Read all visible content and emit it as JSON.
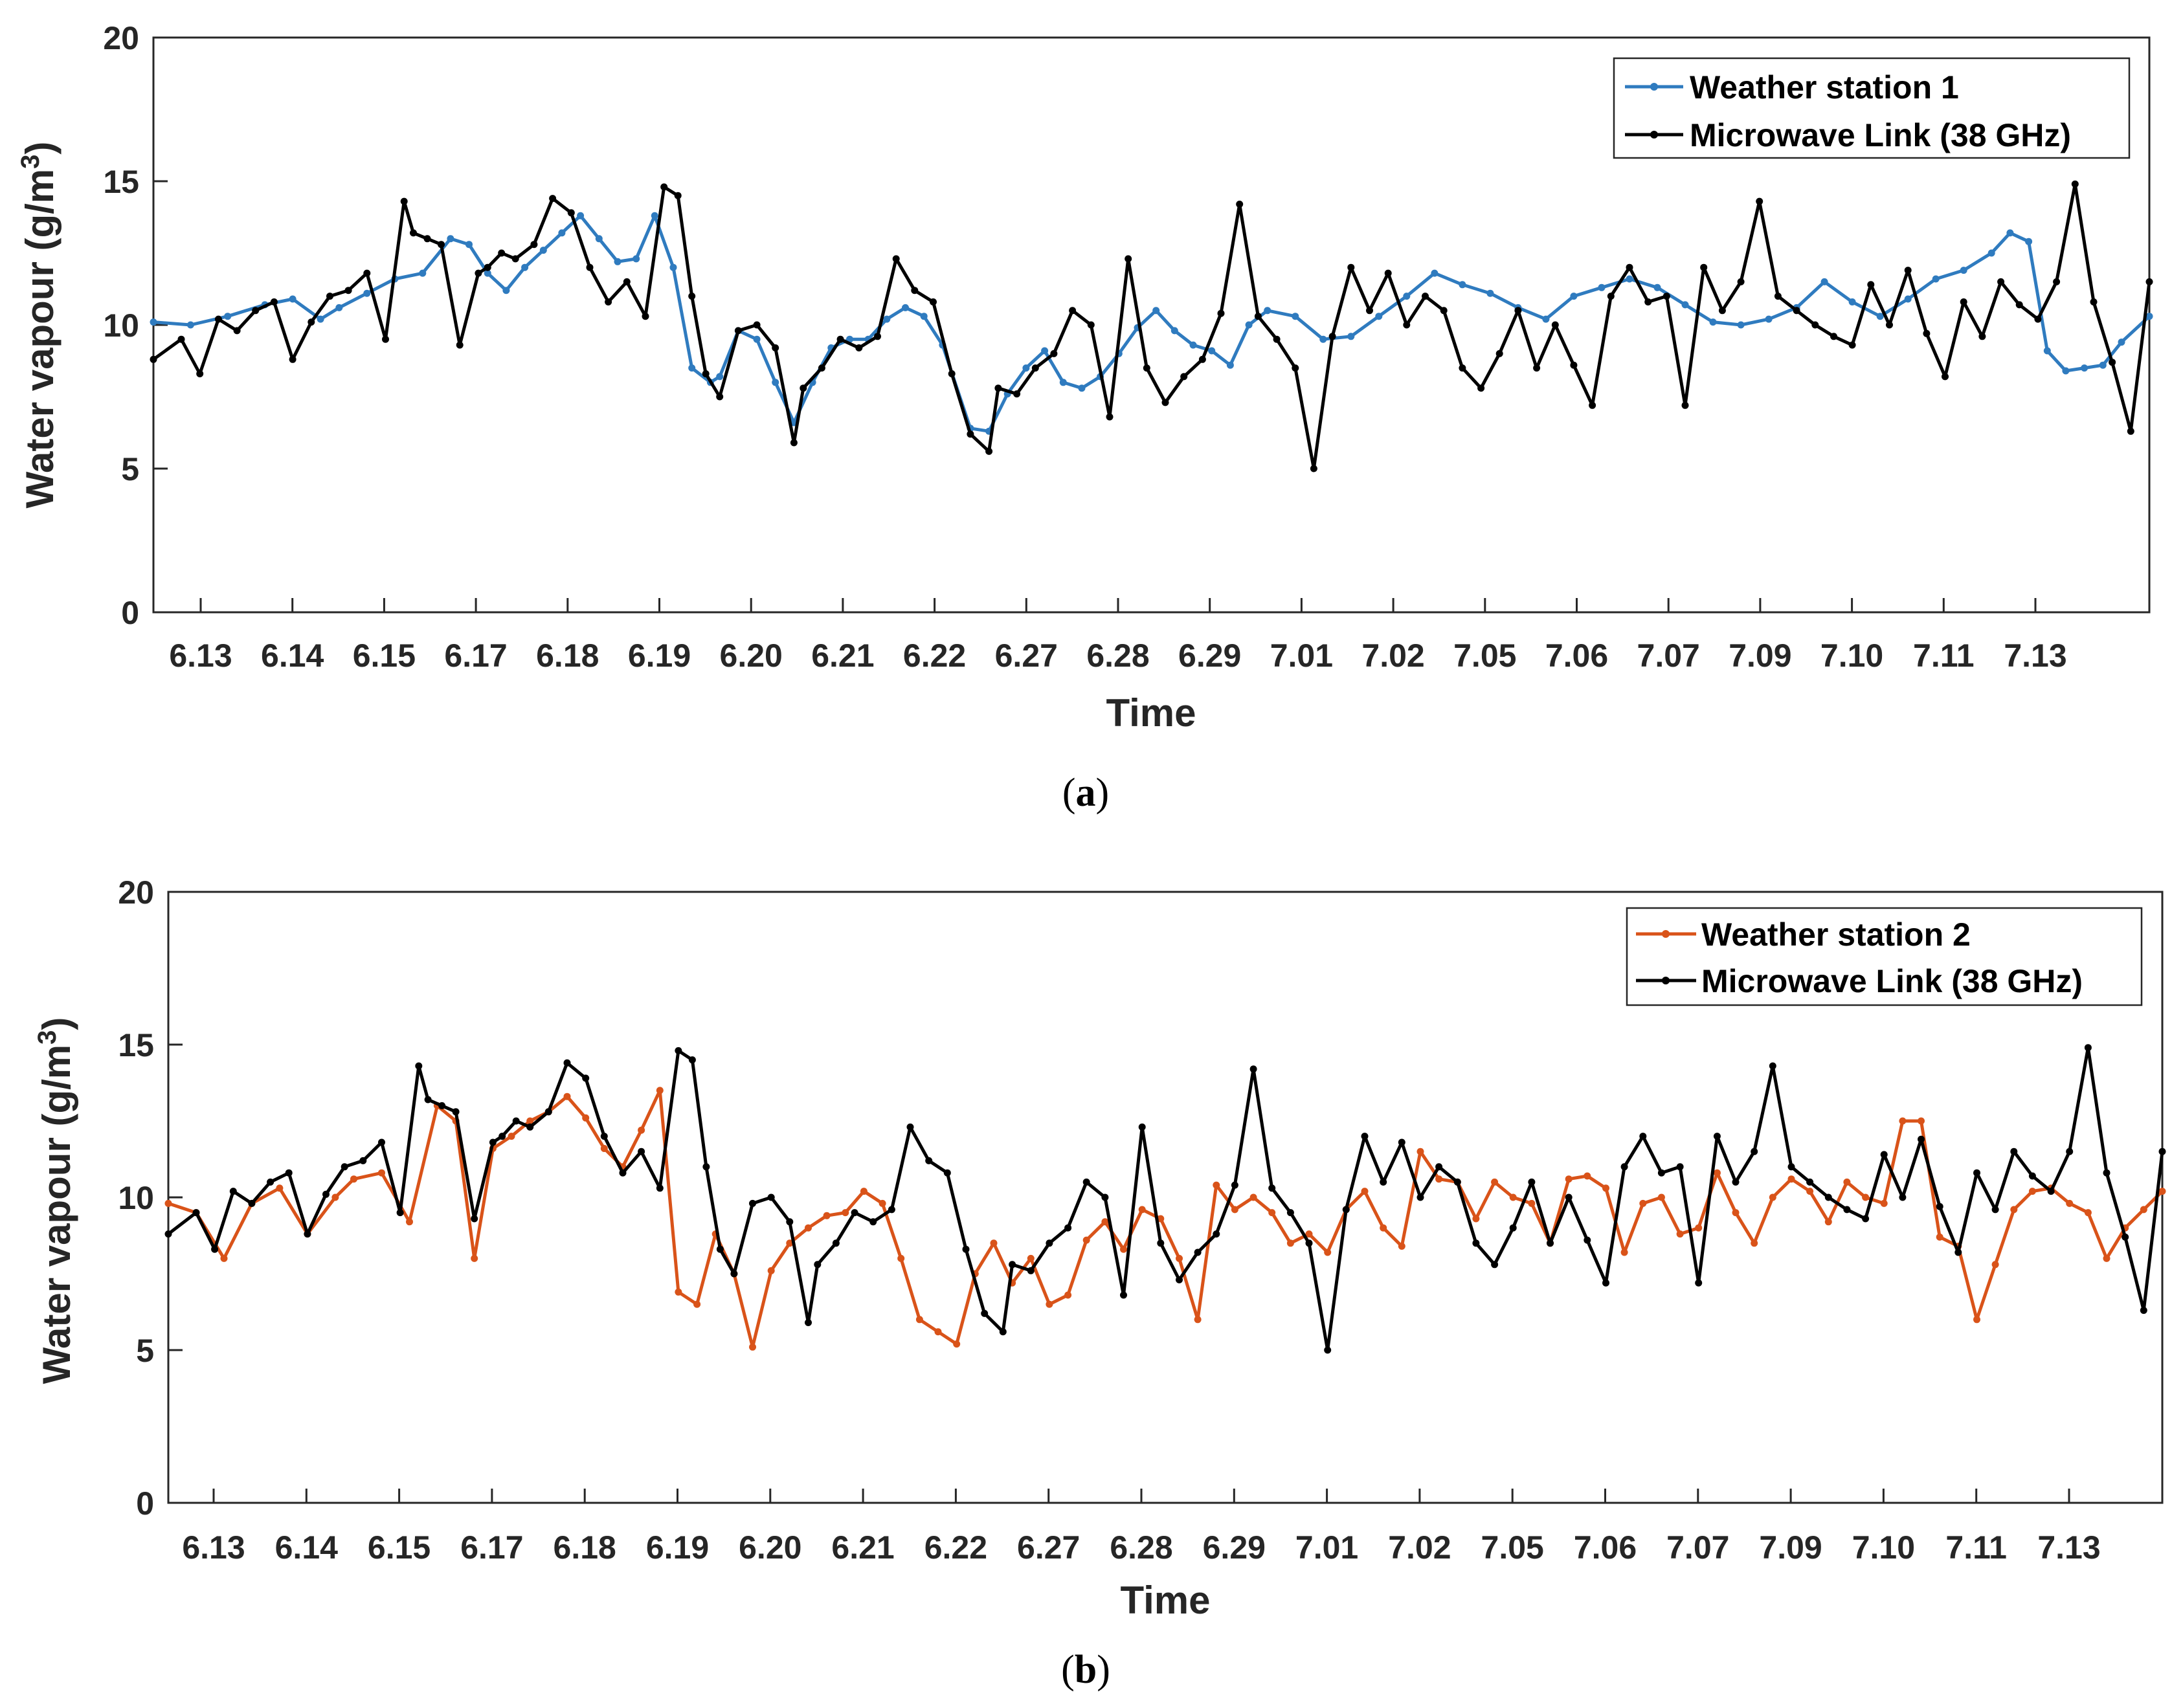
{
  "chart_data": [
    {
      "type": "line",
      "panel_label": "a",
      "xlabel": "Time",
      "ylabel": "Water vapour (g/m",
      "ylabel_sup": "3",
      "ylabel_close": ")",
      "ylim": [
        0,
        20
      ],
      "yticks": [
        "0",
        "5",
        "10",
        "15",
        "20"
      ],
      "xlim": [
        0,
        21.5
      ],
      "categories": [
        "6.13",
        "6.14",
        "6.15",
        "6.17",
        "6.18",
        "6.19",
        "6.20",
        "6.21",
        "6.22",
        "6.27",
        "6.28",
        "6.29",
        "7.01",
        "7.02",
        "7.05",
        "7.06",
        "7.07",
        "7.09",
        "7.10",
        "7.11",
        "7.13"
      ],
      "legend_position": "top-right",
      "series": [
        {
          "name": "Weather station 1",
          "color": "#2f7bbf",
          "x": [
            0.0,
            0.4,
            0.8,
            1.2,
            1.5,
            1.8,
            2.0,
            2.3,
            2.6,
            2.9,
            3.2,
            3.4,
            3.6,
            3.8,
            4.0,
            4.2,
            4.4,
            4.6,
            4.8,
            5.0,
            5.2,
            5.4,
            5.6,
            5.8,
            6.0,
            6.1,
            6.3,
            6.5,
            6.7,
            6.9,
            7.1,
            7.3,
            7.5,
            7.7,
            7.9,
            8.1,
            8.3,
            8.5,
            8.8,
            9.0,
            9.2,
            9.4,
            9.6,
            9.8,
            10.0,
            10.2,
            10.4,
            10.6,
            10.8,
            11.0,
            11.2,
            11.4,
            11.6,
            11.8,
            12.0,
            12.3,
            12.6,
            12.9,
            13.2,
            13.5,
            13.8,
            14.1,
            14.4,
            14.7,
            15.0,
            15.3,
            15.6,
            15.9,
            16.2,
            16.5,
            16.8,
            17.1,
            17.4,
            17.7,
            18.0,
            18.3,
            18.6,
            18.9,
            19.2,
            19.5,
            19.8,
            20.0,
            20.2,
            20.4,
            20.6,
            20.8,
            21.0,
            21.2,
            21.5
          ],
          "values": [
            10.1,
            10.0,
            10.3,
            10.7,
            10.9,
            10.2,
            10.6,
            11.1,
            11.6,
            11.8,
            13.0,
            12.8,
            11.8,
            11.2,
            12.0,
            12.6,
            13.2,
            13.8,
            13.0,
            12.2,
            12.3,
            13.8,
            12.0,
            8.5,
            8.0,
            8.2,
            9.8,
            9.5,
            8.0,
            6.6,
            8.0,
            9.2,
            9.5,
            9.5,
            10.2,
            10.6,
            10.3,
            9.3,
            6.4,
            6.3,
            7.6,
            8.5,
            9.1,
            8.0,
            7.8,
            8.2,
            9.0,
            9.9,
            10.5,
            9.8,
            9.3,
            9.1,
            8.6,
            10.0,
            10.5,
            10.3,
            9.5,
            9.6,
            10.3,
            11.0,
            11.8,
            11.4,
            11.1,
            10.6,
            10.2,
            11.0,
            11.3,
            11.6,
            11.3,
            10.7,
            10.1,
            10.0,
            10.2,
            10.6,
            11.5,
            10.8,
            10.3,
            10.9,
            11.6,
            11.9,
            12.5,
            13.2,
            12.9,
            9.1,
            8.4,
            8.5,
            8.6,
            9.4,
            10.3
          ]
        },
        {
          "name": "Microwave Link (38 GHz)",
          "color": "#000000",
          "x": [
            0.0,
            0.3,
            0.5,
            0.7,
            0.9,
            1.1,
            1.3,
            1.5,
            1.7,
            1.9,
            2.1,
            2.3,
            2.5,
            2.7,
            2.8,
            2.95,
            3.1,
            3.3,
            3.5,
            3.6,
            3.75,
            3.9,
            4.1,
            4.3,
            4.5,
            4.7,
            4.9,
            5.1,
            5.3,
            5.5,
            5.65,
            5.8,
            5.95,
            6.1,
            6.3,
            6.5,
            6.7,
            6.9,
            7.0,
            7.2,
            7.4,
            7.6,
            7.8,
            8.0,
            8.2,
            8.4,
            8.6,
            8.8,
            9.0,
            9.1,
            9.3,
            9.5,
            9.7,
            9.9,
            10.1,
            10.3,
            10.5,
            10.7,
            10.9,
            11.1,
            11.3,
            11.5,
            11.7,
            11.9,
            12.1,
            12.3,
            12.5,
            12.7,
            12.9,
            13.1,
            13.3,
            13.5,
            13.7,
            13.9,
            14.1,
            14.3,
            14.5,
            14.7,
            14.9,
            15.1,
            15.3,
            15.5,
            15.7,
            15.9,
            16.1,
            16.3,
            16.5,
            16.7,
            16.9,
            17.1,
            17.3,
            17.5,
            17.7,
            17.9,
            18.1,
            18.3,
            18.5,
            18.7,
            18.9,
            19.1,
            19.3,
            19.5,
            19.7,
            19.9,
            20.1,
            20.3,
            20.5,
            20.7,
            20.9,
            21.1,
            21.3,
            21.5
          ],
          "values": [
            8.8,
            9.5,
            8.3,
            10.2,
            9.8,
            10.5,
            10.8,
            8.8,
            10.1,
            11.0,
            11.2,
            11.8,
            9.5,
            14.3,
            13.2,
            13.0,
            12.8,
            9.3,
            11.8,
            12.0,
            12.5,
            12.3,
            12.8,
            14.4,
            13.9,
            12.0,
            10.8,
            11.5,
            10.3,
            14.8,
            14.5,
            11.0,
            8.3,
            7.5,
            9.8,
            10.0,
            9.2,
            5.9,
            7.8,
            8.5,
            9.5,
            9.2,
            9.6,
            12.3,
            11.2,
            10.8,
            8.3,
            6.2,
            5.6,
            7.8,
            7.6,
            8.5,
            9.0,
            10.5,
            10.0,
            6.8,
            12.3,
            8.5,
            7.3,
            8.2,
            8.8,
            10.4,
            14.2,
            10.3,
            9.5,
            8.5,
            5.0,
            9.6,
            12.0,
            10.5,
            11.8,
            10.0,
            11.0,
            10.5,
            8.5,
            7.8,
            9.0,
            10.5,
            8.5,
            10.0,
            8.6,
            7.2,
            11.0,
            12.0,
            10.8,
            11.0,
            7.2,
            12.0,
            10.5,
            11.5,
            14.3,
            11.0,
            10.5,
            10.0,
            9.6,
            9.3,
            11.4,
            10.0,
            11.9,
            9.7,
            8.2,
            10.8,
            9.6,
            11.5,
            10.7,
            10.2,
            11.5,
            14.9,
            10.8,
            8.7,
            6.3,
            11.5
          ]
        }
      ]
    },
    {
      "type": "line",
      "panel_label": "b",
      "xlabel": "Time",
      "ylabel": "Water vapour (g/m",
      "ylabel_sup": "3",
      "ylabel_close": ")",
      "ylim": [
        0,
        20
      ],
      "yticks": [
        "0",
        "5",
        "10",
        "15",
        "20"
      ],
      "xlim": [
        0,
        21.5
      ],
      "categories": [
        "6.13",
        "6.14",
        "6.15",
        "6.17",
        "6.18",
        "6.19",
        "6.20",
        "6.21",
        "6.22",
        "6.27",
        "6.28",
        "6.29",
        "7.01",
        "7.02",
        "7.05",
        "7.06",
        "7.07",
        "7.09",
        "7.10",
        "7.11",
        "7.13"
      ],
      "legend_position": "top-right",
      "series": [
        {
          "name": "Weather station 2",
          "color": "#d95319",
          "x": [
            0.0,
            0.3,
            0.6,
            0.9,
            1.2,
            1.5,
            1.8,
            2.0,
            2.3,
            2.6,
            2.9,
            3.1,
            3.3,
            3.5,
            3.7,
            3.9,
            4.1,
            4.3,
            4.5,
            4.7,
            4.9,
            5.1,
            5.3,
            5.5,
            5.7,
            5.9,
            6.1,
            6.3,
            6.5,
            6.7,
            6.9,
            7.1,
            7.3,
            7.5,
            7.7,
            7.9,
            8.1,
            8.3,
            8.5,
            8.7,
            8.9,
            9.1,
            9.3,
            9.5,
            9.7,
            9.9,
            10.1,
            10.3,
            10.5,
            10.7,
            10.9,
            11.1,
            11.3,
            11.5,
            11.7,
            11.9,
            12.1,
            12.3,
            12.5,
            12.7,
            12.9,
            13.1,
            13.3,
            13.5,
            13.7,
            13.9,
            14.1,
            14.3,
            14.5,
            14.7,
            14.9,
            15.1,
            15.3,
            15.5,
            15.7,
            15.9,
            16.1,
            16.3,
            16.5,
            16.7,
            16.9,
            17.1,
            17.3,
            17.5,
            17.7,
            17.9,
            18.1,
            18.3,
            18.5,
            18.7,
            18.9,
            19.1,
            19.3,
            19.5,
            19.7,
            19.9,
            20.1,
            20.3,
            20.5,
            20.7,
            20.9,
            21.1,
            21.3,
            21.5
          ],
          "values": [
            9.8,
            9.5,
            8.0,
            9.8,
            10.3,
            8.8,
            10.0,
            10.6,
            10.8,
            9.2,
            13.0,
            12.5,
            8.0,
            11.6,
            12.0,
            12.5,
            12.8,
            13.3,
            12.6,
            11.6,
            11.0,
            12.2,
            13.5,
            6.9,
            6.5,
            8.8,
            7.5,
            5.1,
            7.6,
            8.5,
            9.0,
            9.4,
            9.5,
            10.2,
            9.8,
            8.0,
            6.0,
            5.6,
            5.2,
            7.5,
            8.5,
            7.2,
            8.0,
            6.5,
            6.8,
            8.6,
            9.2,
            8.3,
            9.6,
            9.3,
            8.0,
            6.0,
            10.4,
            9.6,
            10.0,
            9.5,
            8.5,
            8.8,
            8.2,
            9.6,
            10.2,
            9.0,
            8.4,
            11.5,
            10.6,
            10.5,
            9.3,
            10.5,
            10.0,
            9.8,
            8.5,
            10.6,
            10.7,
            10.3,
            8.2,
            9.8,
            10.0,
            8.8,
            9.0,
            10.8,
            9.5,
            8.5,
            10.0,
            10.6,
            10.2,
            9.2,
            10.5,
            10.0,
            9.8,
            12.5,
            12.5,
            8.7,
            8.4,
            6.0,
            7.8,
            9.6,
            10.2,
            10.3,
            9.8,
            9.5,
            8.0,
            9.0,
            9.6,
            10.2
          ]
        },
        {
          "name": "Microwave Link (38 GHz)",
          "color": "#000000",
          "x": [
            0.0,
            0.3,
            0.5,
            0.7,
            0.9,
            1.1,
            1.3,
            1.5,
            1.7,
            1.9,
            2.1,
            2.3,
            2.5,
            2.7,
            2.8,
            2.95,
            3.1,
            3.3,
            3.5,
            3.6,
            3.75,
            3.9,
            4.1,
            4.3,
            4.5,
            4.7,
            4.9,
            5.1,
            5.3,
            5.5,
            5.65,
            5.8,
            5.95,
            6.1,
            6.3,
            6.5,
            6.7,
            6.9,
            7.0,
            7.2,
            7.4,
            7.6,
            7.8,
            8.0,
            8.2,
            8.4,
            8.6,
            8.8,
            9.0,
            9.1,
            9.3,
            9.5,
            9.7,
            9.9,
            10.1,
            10.3,
            10.5,
            10.7,
            10.9,
            11.1,
            11.3,
            11.5,
            11.7,
            11.9,
            12.1,
            12.3,
            12.5,
            12.7,
            12.9,
            13.1,
            13.3,
            13.5,
            13.7,
            13.9,
            14.1,
            14.3,
            14.5,
            14.7,
            14.9,
            15.1,
            15.3,
            15.5,
            15.7,
            15.9,
            16.1,
            16.3,
            16.5,
            16.7,
            16.9,
            17.1,
            17.3,
            17.5,
            17.7,
            17.9,
            18.1,
            18.3,
            18.5,
            18.7,
            18.9,
            19.1,
            19.3,
            19.5,
            19.7,
            19.9,
            20.1,
            20.3,
            20.5,
            20.7,
            20.9,
            21.1,
            21.3,
            21.5
          ],
          "values": [
            8.8,
            9.5,
            8.3,
            10.2,
            9.8,
            10.5,
            10.8,
            8.8,
            10.1,
            11.0,
            11.2,
            11.8,
            9.5,
            14.3,
            13.2,
            13.0,
            12.8,
            9.3,
            11.8,
            12.0,
            12.5,
            12.3,
            12.8,
            14.4,
            13.9,
            12.0,
            10.8,
            11.5,
            10.3,
            14.8,
            14.5,
            11.0,
            8.3,
            7.5,
            9.8,
            10.0,
            9.2,
            5.9,
            7.8,
            8.5,
            9.5,
            9.2,
            9.6,
            12.3,
            11.2,
            10.8,
            8.3,
            6.2,
            5.6,
            7.8,
            7.6,
            8.5,
            9.0,
            10.5,
            10.0,
            6.8,
            12.3,
            8.5,
            7.3,
            8.2,
            8.8,
            10.4,
            14.2,
            10.3,
            9.5,
            8.5,
            5.0,
            9.6,
            12.0,
            10.5,
            11.8,
            10.0,
            11.0,
            10.5,
            8.5,
            7.8,
            9.0,
            10.5,
            8.5,
            10.0,
            8.6,
            7.2,
            11.0,
            12.0,
            10.8,
            11.0,
            7.2,
            12.0,
            10.5,
            11.5,
            14.3,
            11.0,
            10.5,
            10.0,
            9.6,
            9.3,
            11.4,
            10.0,
            11.9,
            9.7,
            8.2,
            10.8,
            9.6,
            11.5,
            10.7,
            10.2,
            11.5,
            14.9,
            10.8,
            8.7,
            6.3,
            11.5
          ]
        }
      ]
    }
  ]
}
